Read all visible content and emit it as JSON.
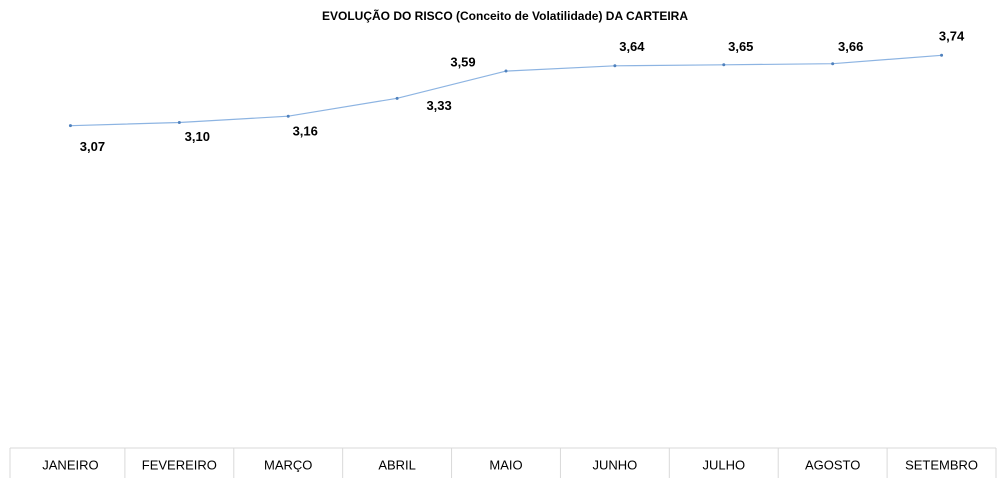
{
  "chart_data": {
    "type": "line",
    "title": "EVOLUÇÃO DO RISCO (Conceito de Volatilidade) DA CARTEIRA",
    "categories": [
      "JANEIRO",
      "FEVEREIRO",
      "MARÇO",
      "ABRIL",
      "MAIO",
      "JUNHO",
      "JULHO",
      "AGOSTO",
      "SETEMBRO"
    ],
    "values": [
      3.07,
      3.1,
      3.16,
      3.33,
      3.59,
      3.64,
      3.65,
      3.66,
      3.74
    ],
    "value_labels": [
      "3,07",
      "3,10",
      "3,16",
      "3,33",
      "3,59",
      "3,64",
      "3,65",
      "3,66",
      "3,74"
    ],
    "color": "#8db4e2",
    "ylim": [
      0,
      4
    ]
  }
}
